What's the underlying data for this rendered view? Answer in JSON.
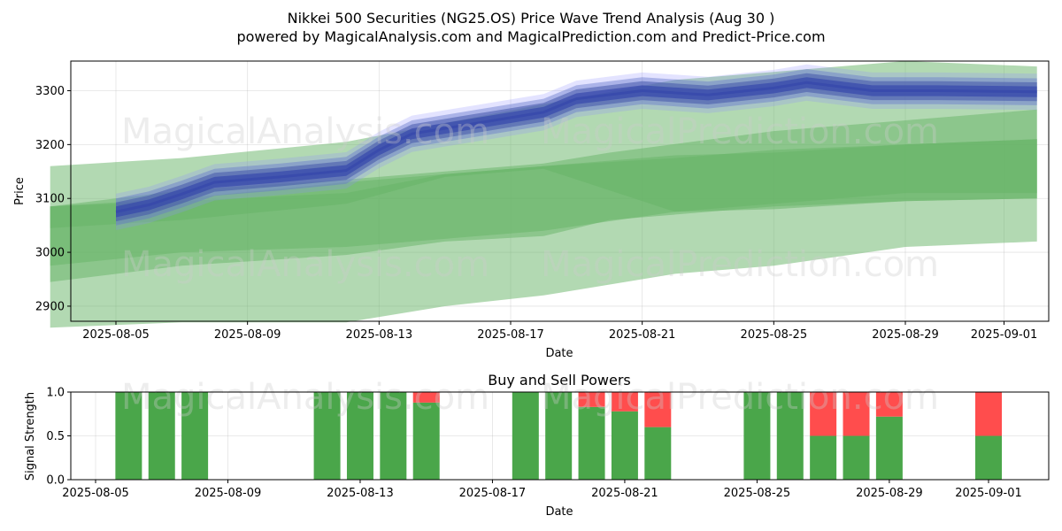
{
  "title_line1": "Nikkei 500 Securities (NG25.OS) Price Wave Trend Analysis (Aug 30 )",
  "title_line2": "powered by MagicalAnalysis.com and MagicalPrediction.com and Predict-Price.com",
  "watermarks": [
    "MagicalAnalysis.com",
    "MagicalPrediction.com"
  ],
  "colors": {
    "band": "#66b366",
    "wave": "#3344aa",
    "buy": "#4aa64a",
    "sell": "#ff4d4d"
  },
  "chart_data": [
    {
      "type": "area",
      "xlabel": "Date",
      "ylabel": "Price",
      "ylim": [
        2872,
        3355
      ],
      "y_ticks": [
        2900,
        3000,
        3100,
        3200,
        3300
      ],
      "x_ticks": [
        "2025-08-05",
        "2025-08-09",
        "2025-08-13",
        "2025-08-17",
        "2025-08-21",
        "2025-08-25",
        "2025-08-29",
        "2025-09-01"
      ],
      "grid": true,
      "bands": [
        {
          "x": [
            "2025-08-03",
            "2025-08-07",
            "2025-08-12",
            "2025-08-18",
            "2025-08-22",
            "2025-08-25",
            "2025-08-29",
            "2025-09-02"
          ],
          "upper": [
            3160,
            3175,
            3205,
            3275,
            3320,
            3335,
            3355,
            3345
          ],
          "lower": [
            2975,
            3000,
            3010,
            3040,
            3075,
            3090,
            3110,
            3110
          ]
        },
        {
          "x": [
            "2025-08-03",
            "2025-08-07",
            "2025-08-12",
            "2025-08-15",
            "2025-08-18",
            "2025-08-20",
            "2025-08-25",
            "2025-08-29",
            "2025-09-02"
          ],
          "upper": [
            3085,
            3115,
            3135,
            3150,
            3165,
            3185,
            3225,
            3245,
            3265
          ],
          "lower": [
            2945,
            2975,
            2995,
            3020,
            3030,
            3060,
            3085,
            3095,
            3100
          ]
        },
        {
          "x": [
            "2025-08-03",
            "2025-08-07",
            "2025-08-12",
            "2025-08-15",
            "2025-08-18",
            "2025-08-22",
            "2025-08-25",
            "2025-08-29",
            "2025-09-02"
          ],
          "upper": [
            3085,
            3100,
            3130,
            3145,
            3160,
            3175,
            3190,
            3200,
            3210
          ],
          "lower": [
            2860,
            2870,
            2870,
            2900,
            2920,
            2960,
            2975,
            3010,
            3020
          ]
        },
        {
          "x": [
            "2025-08-03",
            "2025-08-07",
            "2025-08-12",
            "2025-08-15",
            "2025-08-18",
            "2025-08-22",
            "2025-08-25",
            "2025-08-29",
            "2025-09-02"
          ],
          "upper": [
            3085,
            3095,
            3110,
            3145,
            3160,
            3180,
            3185,
            3200,
            3210
          ],
          "lower": [
            3045,
            3060,
            3090,
            3140,
            3155,
            3075,
            3080,
            3095,
            3100
          ]
        }
      ],
      "wave": {
        "x": [
          "2025-08-05",
          "2025-08-06",
          "2025-08-07",
          "2025-08-08",
          "2025-08-10",
          "2025-08-12",
          "2025-08-13",
          "2025-08-14",
          "2025-08-16",
          "2025-08-18",
          "2025-08-19",
          "2025-08-21",
          "2025-08-23",
          "2025-08-25",
          "2025-08-26",
          "2025-08-28",
          "2025-08-30",
          "2025-09-02"
        ],
        "center": [
          3075,
          3088,
          3108,
          3130,
          3140,
          3152,
          3190,
          3220,
          3240,
          3260,
          3285,
          3300,
          3292,
          3305,
          3315,
          3300,
          3300,
          3298
        ],
        "spread": [
          25,
          25,
          25,
          25,
          25,
          25,
          25,
          25,
          25,
          25,
          25,
          25,
          25,
          25,
          25,
          25,
          25,
          25
        ]
      }
    },
    {
      "type": "bar",
      "title": "Buy and Sell Powers",
      "xlabel": "Date",
      "ylabel": "Signal Strength",
      "ylim": [
        0,
        1
      ],
      "y_ticks": [
        "0.0",
        "0.5",
        "1.0"
      ],
      "x_ticks": [
        "2025-08-05",
        "2025-08-09",
        "2025-08-13",
        "2025-08-17",
        "2025-08-21",
        "2025-08-25",
        "2025-08-29",
        "2025-09-01"
      ],
      "grid": true,
      "series": [
        {
          "name": "buy",
          "x": [
            "2025-08-06",
            "2025-08-07",
            "2025-08-08",
            "2025-08-12",
            "2025-08-13",
            "2025-08-14",
            "2025-08-15",
            "2025-08-18",
            "2025-08-19",
            "2025-08-20",
            "2025-08-21",
            "2025-08-22",
            "2025-08-25",
            "2025-08-26",
            "2025-08-27",
            "2025-08-28",
            "2025-08-29",
            "2025-09-01"
          ],
          "values": [
            1.0,
            1.0,
            1.0,
            1.0,
            1.0,
            1.0,
            0.88,
            1.0,
            1.0,
            0.83,
            0.78,
            0.6,
            1.0,
            1.0,
            0.5,
            0.5,
            0.72,
            0.5
          ]
        },
        {
          "name": "sell",
          "x": [
            "2025-08-06",
            "2025-08-07",
            "2025-08-08",
            "2025-08-12",
            "2025-08-13",
            "2025-08-14",
            "2025-08-15",
            "2025-08-18",
            "2025-08-19",
            "2025-08-20",
            "2025-08-21",
            "2025-08-22",
            "2025-08-25",
            "2025-08-26",
            "2025-08-27",
            "2025-08-28",
            "2025-08-29",
            "2025-09-01"
          ],
          "values": [
            0.0,
            0.0,
            0.0,
            0.0,
            0.0,
            0.0,
            0.12,
            0.0,
            0.0,
            0.17,
            0.22,
            0.4,
            0.0,
            0.0,
            0.5,
            0.5,
            0.28,
            0.5
          ]
        }
      ]
    }
  ]
}
